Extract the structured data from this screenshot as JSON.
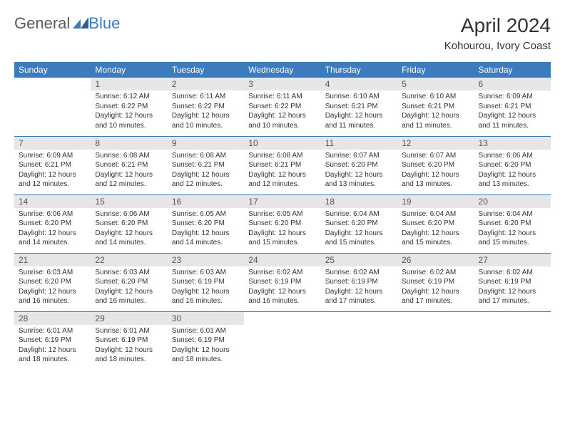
{
  "logo": {
    "part1": "General",
    "part2": "Blue"
  },
  "title": "April 2024",
  "location": "Kohourou, Ivory Coast",
  "headers": [
    "Sunday",
    "Monday",
    "Tuesday",
    "Wednesday",
    "Thursday",
    "Friday",
    "Saturday"
  ],
  "colors": {
    "header_bg": "#3d7bbf",
    "header_text": "#ffffff",
    "daynum_bg": "#e6e6e6",
    "cell_border": "#3d7bbf",
    "body_text": "#333333",
    "logo_blue": "#3d7bbf",
    "logo_gray": "#5a5a5a"
  },
  "weeks": [
    [
      {
        "n": "",
        "sr": "",
        "ss": "",
        "d1": "",
        "d2": ""
      },
      {
        "n": "1",
        "sr": "Sunrise: 6:12 AM",
        "ss": "Sunset: 6:22 PM",
        "d1": "Daylight: 12 hours",
        "d2": "and 10 minutes."
      },
      {
        "n": "2",
        "sr": "Sunrise: 6:11 AM",
        "ss": "Sunset: 6:22 PM",
        "d1": "Daylight: 12 hours",
        "d2": "and 10 minutes."
      },
      {
        "n": "3",
        "sr": "Sunrise: 6:11 AM",
        "ss": "Sunset: 6:22 PM",
        "d1": "Daylight: 12 hours",
        "d2": "and 10 minutes."
      },
      {
        "n": "4",
        "sr": "Sunrise: 6:10 AM",
        "ss": "Sunset: 6:21 PM",
        "d1": "Daylight: 12 hours",
        "d2": "and 11 minutes."
      },
      {
        "n": "5",
        "sr": "Sunrise: 6:10 AM",
        "ss": "Sunset: 6:21 PM",
        "d1": "Daylight: 12 hours",
        "d2": "and 11 minutes."
      },
      {
        "n": "6",
        "sr": "Sunrise: 6:09 AM",
        "ss": "Sunset: 6:21 PM",
        "d1": "Daylight: 12 hours",
        "d2": "and 11 minutes."
      }
    ],
    [
      {
        "n": "7",
        "sr": "Sunrise: 6:09 AM",
        "ss": "Sunset: 6:21 PM",
        "d1": "Daylight: 12 hours",
        "d2": "and 12 minutes."
      },
      {
        "n": "8",
        "sr": "Sunrise: 6:08 AM",
        "ss": "Sunset: 6:21 PM",
        "d1": "Daylight: 12 hours",
        "d2": "and 12 minutes."
      },
      {
        "n": "9",
        "sr": "Sunrise: 6:08 AM",
        "ss": "Sunset: 6:21 PM",
        "d1": "Daylight: 12 hours",
        "d2": "and 12 minutes."
      },
      {
        "n": "10",
        "sr": "Sunrise: 6:08 AM",
        "ss": "Sunset: 6:21 PM",
        "d1": "Daylight: 12 hours",
        "d2": "and 12 minutes."
      },
      {
        "n": "11",
        "sr": "Sunrise: 6:07 AM",
        "ss": "Sunset: 6:20 PM",
        "d1": "Daylight: 12 hours",
        "d2": "and 13 minutes."
      },
      {
        "n": "12",
        "sr": "Sunrise: 6:07 AM",
        "ss": "Sunset: 6:20 PM",
        "d1": "Daylight: 12 hours",
        "d2": "and 13 minutes."
      },
      {
        "n": "13",
        "sr": "Sunrise: 6:06 AM",
        "ss": "Sunset: 6:20 PM",
        "d1": "Daylight: 12 hours",
        "d2": "and 13 minutes."
      }
    ],
    [
      {
        "n": "14",
        "sr": "Sunrise: 6:06 AM",
        "ss": "Sunset: 6:20 PM",
        "d1": "Daylight: 12 hours",
        "d2": "and 14 minutes."
      },
      {
        "n": "15",
        "sr": "Sunrise: 6:06 AM",
        "ss": "Sunset: 6:20 PM",
        "d1": "Daylight: 12 hours",
        "d2": "and 14 minutes."
      },
      {
        "n": "16",
        "sr": "Sunrise: 6:05 AM",
        "ss": "Sunset: 6:20 PM",
        "d1": "Daylight: 12 hours",
        "d2": "and 14 minutes."
      },
      {
        "n": "17",
        "sr": "Sunrise: 6:05 AM",
        "ss": "Sunset: 6:20 PM",
        "d1": "Daylight: 12 hours",
        "d2": "and 15 minutes."
      },
      {
        "n": "18",
        "sr": "Sunrise: 6:04 AM",
        "ss": "Sunset: 6:20 PM",
        "d1": "Daylight: 12 hours",
        "d2": "and 15 minutes."
      },
      {
        "n": "19",
        "sr": "Sunrise: 6:04 AM",
        "ss": "Sunset: 6:20 PM",
        "d1": "Daylight: 12 hours",
        "d2": "and 15 minutes."
      },
      {
        "n": "20",
        "sr": "Sunrise: 6:04 AM",
        "ss": "Sunset: 6:20 PM",
        "d1": "Daylight: 12 hours",
        "d2": "and 15 minutes."
      }
    ],
    [
      {
        "n": "21",
        "sr": "Sunrise: 6:03 AM",
        "ss": "Sunset: 6:20 PM",
        "d1": "Daylight: 12 hours",
        "d2": "and 16 minutes."
      },
      {
        "n": "22",
        "sr": "Sunrise: 6:03 AM",
        "ss": "Sunset: 6:20 PM",
        "d1": "Daylight: 12 hours",
        "d2": "and 16 minutes."
      },
      {
        "n": "23",
        "sr": "Sunrise: 6:03 AM",
        "ss": "Sunset: 6:19 PM",
        "d1": "Daylight: 12 hours",
        "d2": "and 16 minutes."
      },
      {
        "n": "24",
        "sr": "Sunrise: 6:02 AM",
        "ss": "Sunset: 6:19 PM",
        "d1": "Daylight: 12 hours",
        "d2": "and 16 minutes."
      },
      {
        "n": "25",
        "sr": "Sunrise: 6:02 AM",
        "ss": "Sunset: 6:19 PM",
        "d1": "Daylight: 12 hours",
        "d2": "and 17 minutes."
      },
      {
        "n": "26",
        "sr": "Sunrise: 6:02 AM",
        "ss": "Sunset: 6:19 PM",
        "d1": "Daylight: 12 hours",
        "d2": "and 17 minutes."
      },
      {
        "n": "27",
        "sr": "Sunrise: 6:02 AM",
        "ss": "Sunset: 6:19 PM",
        "d1": "Daylight: 12 hours",
        "d2": "and 17 minutes."
      }
    ],
    [
      {
        "n": "28",
        "sr": "Sunrise: 6:01 AM",
        "ss": "Sunset: 6:19 PM",
        "d1": "Daylight: 12 hours",
        "d2": "and 18 minutes."
      },
      {
        "n": "29",
        "sr": "Sunrise: 6:01 AM",
        "ss": "Sunset: 6:19 PM",
        "d1": "Daylight: 12 hours",
        "d2": "and 18 minutes."
      },
      {
        "n": "30",
        "sr": "Sunrise: 6:01 AM",
        "ss": "Sunset: 6:19 PM",
        "d1": "Daylight: 12 hours",
        "d2": "and 18 minutes."
      },
      {
        "n": "",
        "sr": "",
        "ss": "",
        "d1": "",
        "d2": ""
      },
      {
        "n": "",
        "sr": "",
        "ss": "",
        "d1": "",
        "d2": ""
      },
      {
        "n": "",
        "sr": "",
        "ss": "",
        "d1": "",
        "d2": ""
      },
      {
        "n": "",
        "sr": "",
        "ss": "",
        "d1": "",
        "d2": ""
      }
    ]
  ]
}
